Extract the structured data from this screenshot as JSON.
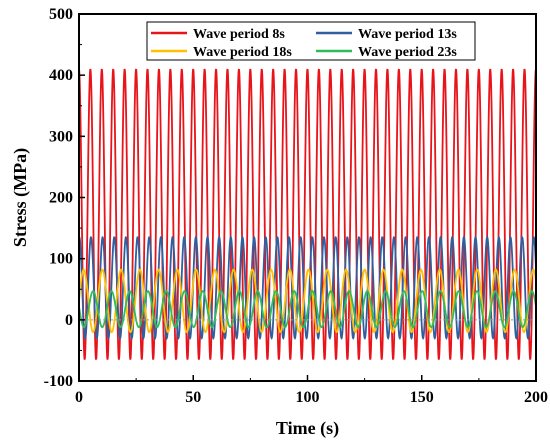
{
  "chart_data": {
    "type": "line",
    "xlabel": "Time (s)",
    "ylabel": "Stress (MPa)",
    "xlim": [
      0,
      200
    ],
    "ylim": [
      -100,
      500
    ],
    "x_ticks": [
      "0",
      "50",
      "100",
      "150",
      "200"
    ],
    "y_ticks": [
      "-100",
      "0",
      "100",
      "200",
      "300",
      "400",
      "500"
    ],
    "legend_position": "top-right",
    "grid": false,
    "zero_reference_line": true,
    "series": [
      {
        "name": "Wave period 8s",
        "color": "#e8141b",
        "period": 5.0,
        "min": -65,
        "max": 410,
        "phase": 1.6
      },
      {
        "name": "Wave period 13s",
        "color": "#2f5f9f",
        "period": 5.1,
        "min": -30,
        "max": 135,
        "phase": 1.4
      },
      {
        "name": "Wave period 18s",
        "color": "#ffc000",
        "period": 8.2,
        "min": -20,
        "max": 82,
        "phase": 0.0
      },
      {
        "name": "Wave period 23s",
        "color": "#2ebd5b",
        "period": 8.0,
        "min": -12,
        "max": 47,
        "phase": 3.0
      }
    ]
  }
}
